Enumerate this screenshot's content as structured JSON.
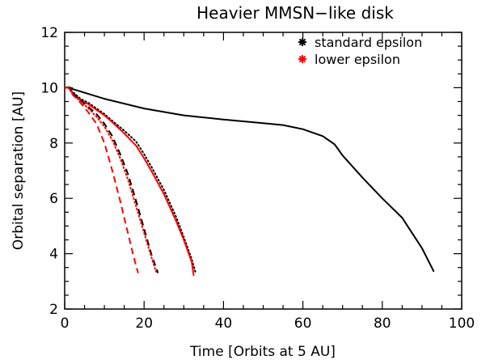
{
  "chart_data": {
    "type": "line",
    "title": "Heavier MMSN−like disk",
    "xlabel": "Time [Orbits at 5 AU]",
    "ylabel": "Orbital separation [AU]",
    "xlim": [
      0,
      100
    ],
    "ylim": [
      2,
      12
    ],
    "xticks": [
      0,
      20,
      40,
      60,
      80,
      100
    ],
    "yticks": [
      2,
      4,
      6,
      8,
      10,
      12
    ],
    "grid": false,
    "legend_position": "top-right",
    "legend": [
      {
        "label": "standard epsilon",
        "color": "#000000"
      },
      {
        "label": "lower epsilon",
        "color": "#ff0000"
      }
    ],
    "series": [
      {
        "color": "#000000",
        "dash": "solid",
        "x": [
          0,
          1,
          2,
          5,
          10,
          20,
          30,
          40,
          50,
          55,
          60,
          65,
          68,
          70,
          75,
          80,
          85,
          90,
          93
        ],
        "y": [
          10.0,
          10.02,
          9.95,
          9.82,
          9.6,
          9.25,
          9.0,
          8.85,
          8.72,
          8.65,
          8.5,
          8.25,
          7.95,
          7.55,
          6.75,
          6.0,
          5.3,
          4.2,
          3.35
        ]
      },
      {
        "color": "#000000",
        "dash": "dotted",
        "x": [
          0,
          1,
          2,
          4,
          6,
          8,
          10,
          12,
          15,
          18,
          20,
          22,
          25,
          28,
          30,
          32,
          33
        ],
        "y": [
          10.0,
          10.0,
          9.85,
          9.6,
          9.45,
          9.25,
          9.05,
          8.8,
          8.45,
          8.05,
          7.6,
          7.1,
          6.3,
          5.35,
          4.6,
          3.8,
          3.3
        ]
      },
      {
        "color": "#ff0000",
        "dash": "solid",
        "x": [
          0,
          1,
          2,
          4,
          6,
          8,
          10,
          12,
          15,
          18,
          20,
          22,
          25,
          28,
          30,
          32,
          32.5
        ],
        "y": [
          10.0,
          10.0,
          9.8,
          9.55,
          9.4,
          9.2,
          9.0,
          8.75,
          8.35,
          7.9,
          7.45,
          6.95,
          6.15,
          5.2,
          4.5,
          3.7,
          3.2
        ]
      },
      {
        "color": "#000000",
        "dash": "dashed",
        "x": [
          0,
          1,
          2,
          4,
          6,
          8,
          10,
          12,
          14,
          16,
          18,
          20,
          22,
          23.5
        ],
        "y": [
          10.0,
          10.0,
          9.8,
          9.55,
          9.3,
          9.05,
          8.7,
          8.25,
          7.6,
          6.85,
          5.9,
          4.9,
          3.9,
          3.3
        ]
      },
      {
        "color": "#ff0000",
        "dash": "dotted",
        "x": [
          0,
          1,
          2,
          4,
          6,
          8,
          10,
          12,
          14,
          16,
          18,
          20,
          22,
          23
        ],
        "y": [
          10.0,
          10.0,
          9.75,
          9.5,
          9.25,
          8.95,
          8.6,
          8.1,
          7.45,
          6.65,
          5.7,
          4.75,
          3.8,
          3.35
        ]
      },
      {
        "color": "#ff0000",
        "dash": "dashed",
        "x": [
          0,
          1,
          2,
          4,
          6,
          8,
          10,
          12,
          14,
          15,
          16,
          17,
          18,
          18.5
        ],
        "y": [
          10.0,
          10.0,
          9.75,
          9.45,
          9.1,
          8.7,
          8.0,
          7.0,
          5.9,
          5.3,
          4.7,
          4.1,
          3.55,
          3.3
        ]
      }
    ]
  }
}
